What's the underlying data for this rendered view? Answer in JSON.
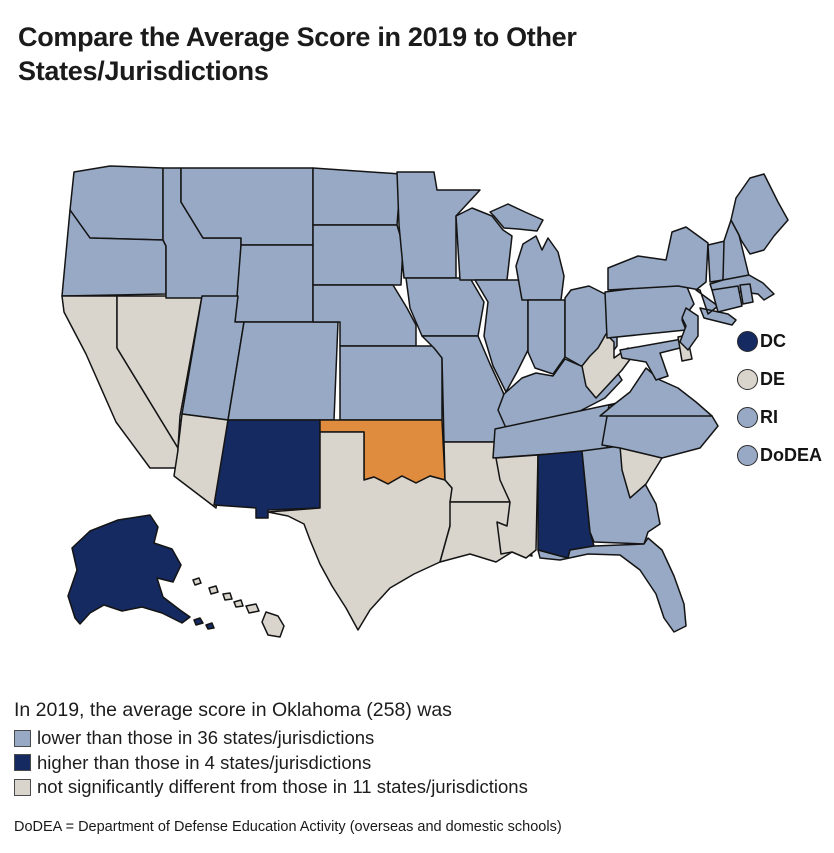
{
  "title": "Compare the Average Score in 2019 to Other States/Jurisdictions",
  "colors": {
    "lower": "#97a9c5",
    "higher": "#152a61",
    "not_different": "#d9d5cd",
    "selected": "#e08c3e",
    "outline": "#141414"
  },
  "map": {
    "selected_state": "OK",
    "state_categories": {
      "WA": "lower",
      "OR": "lower",
      "CA": "not_different",
      "NV": "not_different",
      "ID": "lower",
      "MT": "lower",
      "WY": "lower",
      "UT": "lower",
      "CO": "lower",
      "AZ": "not_different",
      "NM": "higher",
      "ND": "lower",
      "SD": "lower",
      "NE": "lower",
      "KS": "lower",
      "OK": "selected",
      "TX": "not_different",
      "MN": "lower",
      "IA": "lower",
      "MO": "lower",
      "AR": "not_different",
      "LA": "not_different",
      "WI": "lower",
      "IL": "lower",
      "MI": "lower",
      "IN": "lower",
      "OH": "lower",
      "KY": "lower",
      "TN": "lower",
      "MS": "not_different",
      "AL": "higher",
      "GA": "lower",
      "FL": "lower",
      "SC": "not_different",
      "NC": "lower",
      "VA": "lower",
      "WV": "not_different",
      "MD": "lower",
      "DE": "not_different",
      "PA": "lower",
      "NJ": "lower",
      "NY": "lower",
      "VT": "lower",
      "NH": "lower",
      "ME": "lower",
      "MA": "lower",
      "CT": "lower",
      "RI": "lower",
      "AK": "higher",
      "HI": "not_different"
    }
  },
  "side_legend": [
    {
      "label": "DC",
      "category": "higher"
    },
    {
      "label": "DE",
      "category": "not_different"
    },
    {
      "label": "RI",
      "category": "lower"
    },
    {
      "label": "DoDEA",
      "category": "lower"
    }
  ],
  "bottom_legend": {
    "intro": "In 2019, the average score in Oklahoma (258) was",
    "items": [
      {
        "category": "lower",
        "label": "lower than those in 36 states/jurisdictions"
      },
      {
        "category": "higher",
        "label": "higher than those in 4 states/jurisdictions"
      },
      {
        "category": "not_different",
        "label": "not significantly different from those in 11 states/jurisdictions"
      }
    ]
  },
  "footnote": "DoDEA = Department of Defense Education Activity (overseas and domestic schools)"
}
